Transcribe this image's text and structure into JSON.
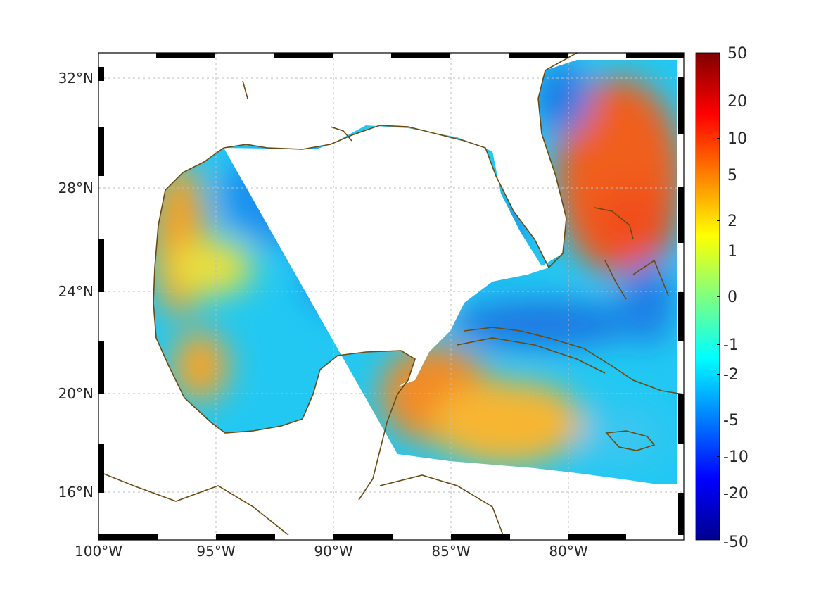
{
  "map": {
    "x_ticks": [
      "100°W",
      "95°W",
      "90°W",
      "85°W",
      "80°W"
    ],
    "y_ticks": [
      "32°N",
      "28°N",
      "24°N",
      "20°N",
      "16°N"
    ],
    "colors": {
      "coastline": "#6b4a12",
      "land": "#ffffff",
      "grid": "#bdbdbd"
    }
  },
  "colorbar": {
    "labels": [
      "50",
      "20",
      "10",
      "5",
      "2",
      "1",
      "0",
      "-1",
      "-2",
      "-5",
      "-10",
      "-20",
      "-50"
    ],
    "colormap": "jet"
  }
}
